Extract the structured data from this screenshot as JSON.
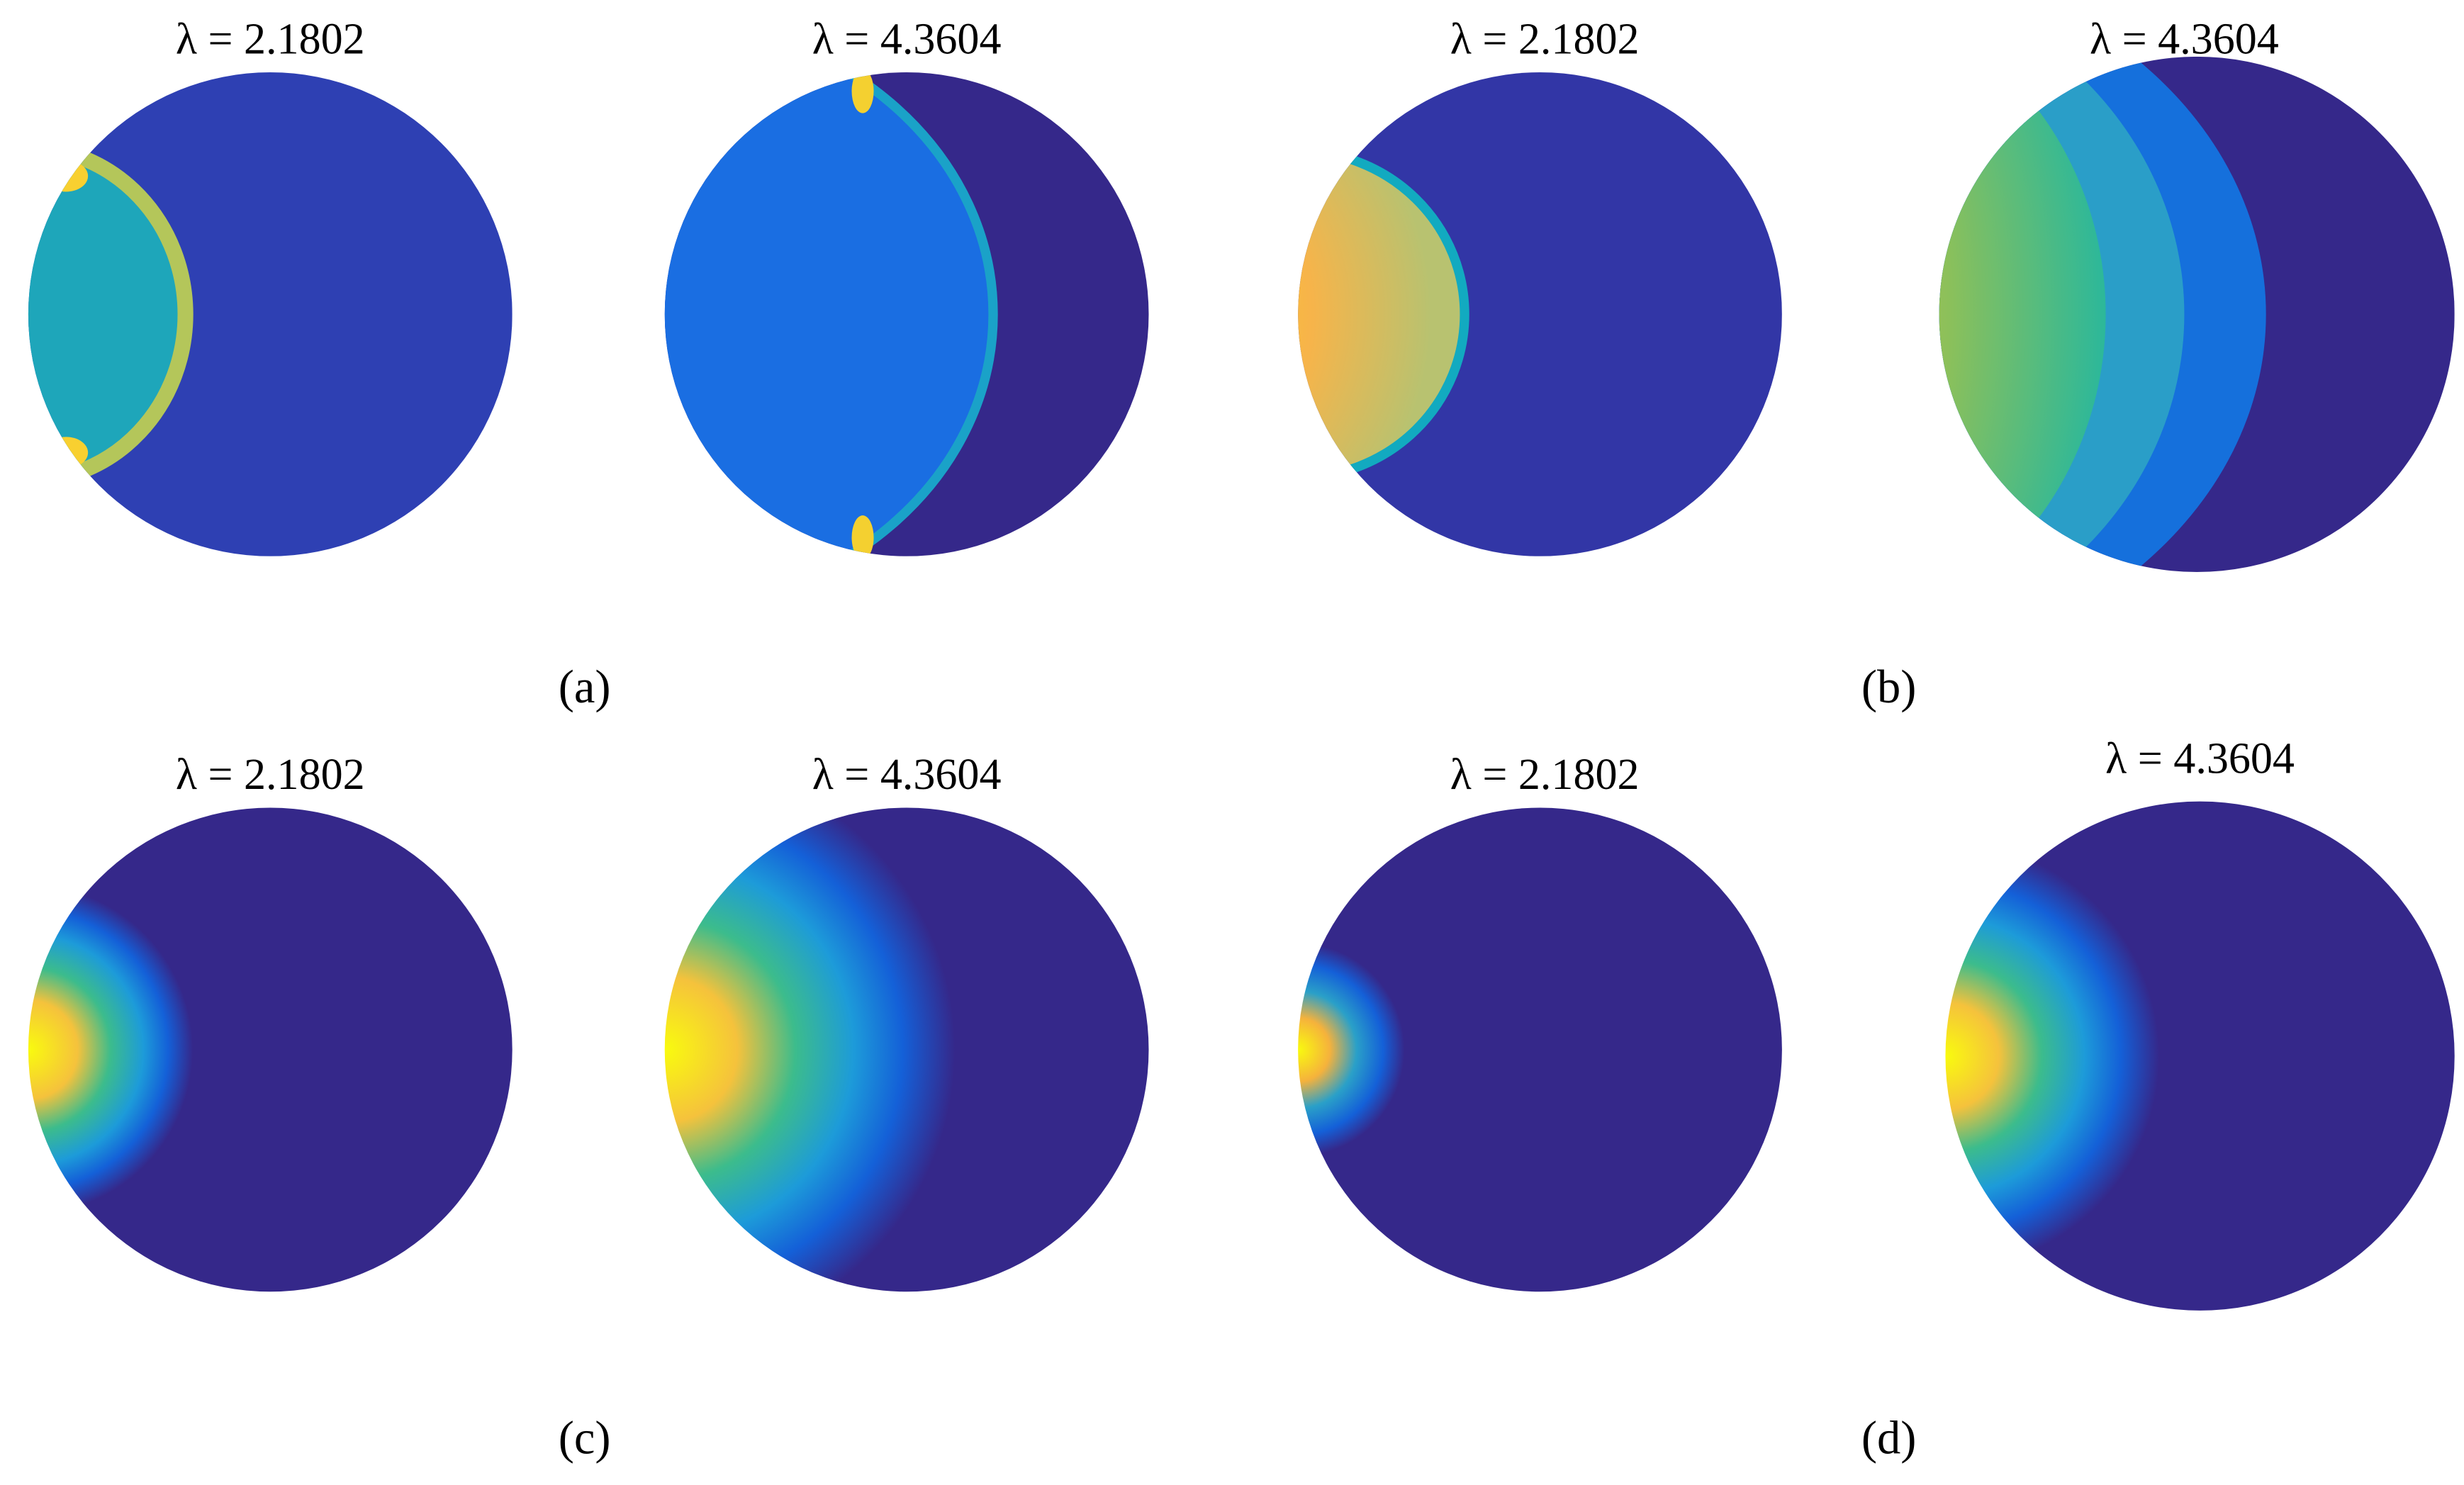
{
  "panels": [
    {
      "label": "(a)",
      "plots": [
        {
          "title": "λ = 2.1802"
        },
        {
          "title": "λ = 4.3604"
        }
      ]
    },
    {
      "label": "(b)",
      "plots": [
        {
          "title": "λ = 2.1802"
        },
        {
          "title": "λ = 4.3604"
        }
      ]
    },
    {
      "label": "(c)",
      "plots": [
        {
          "title": "λ = 2.1802"
        },
        {
          "title": "λ = 4.3604"
        }
      ]
    },
    {
      "label": "(d)",
      "plots": [
        {
          "title": "λ = 2.1802"
        },
        {
          "title": "λ = 4.3604"
        }
      ]
    }
  ]
}
